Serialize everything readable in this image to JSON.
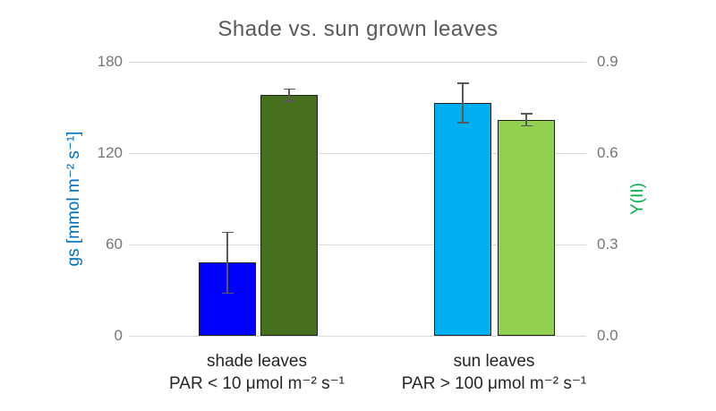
{
  "chart_data": {
    "type": "bar",
    "title": "Shade vs. sun grown leaves",
    "grid": true,
    "legend": "none",
    "left_axis": {
      "label": "gs [mmol m⁻² s⁻¹]",
      "min": 0,
      "max": 180,
      "ticks": [
        180,
        120,
        60,
        0
      ],
      "color": "#0070C0"
    },
    "right_axis": {
      "label": "Y(II)",
      "min": 0,
      "max": 0.9,
      "ticks": [
        "0.9",
        "0.6",
        "0.3",
        "0.0"
      ],
      "color": "#00B050"
    },
    "groups": [
      {
        "name": "shade",
        "label_line1": "shade leaves",
        "label_line2": "PAR < 10 μmol m⁻² s⁻¹",
        "bars": [
          {
            "name": "gs",
            "axis": "left",
            "value": 48,
            "error": 20,
            "color": "#0000FF"
          },
          {
            "name": "yii",
            "axis": "right",
            "value": 0.79,
            "error": 0.02,
            "color": "#46701E"
          }
        ]
      },
      {
        "name": "sun",
        "label_line1": "sun leaves",
        "label_line2": "PAR > 100 μmol m⁻² s⁻¹",
        "bars": [
          {
            "name": "gs",
            "axis": "left",
            "value": 153,
            "error": 13,
            "color": "#00B0F0"
          },
          {
            "name": "yii",
            "axis": "right",
            "value": 0.71,
            "error": 0.02,
            "color": "#92D050"
          }
        ]
      }
    ],
    "colors": {
      "title": "#595959",
      "tick_labels": "#767676",
      "gridlines": "#D9D9D9",
      "error_bars": "#595959",
      "bar_outline": "#1F1F1F",
      "category_labels": "#262626"
    }
  }
}
